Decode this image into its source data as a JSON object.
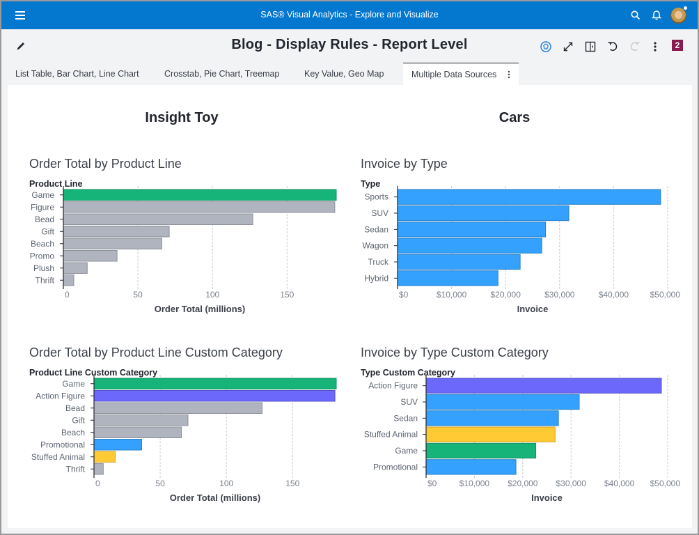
{
  "app": {
    "title": "SAS® Visual Analytics - Explore and Visualize",
    "icons": [
      "menu-icon",
      "search-icon",
      "bell-icon",
      "avatar"
    ]
  },
  "report": {
    "title": "Blog - Display Rules - Report Level",
    "badge_count": "2",
    "toolbar_icons": [
      "lightbulb-icon",
      "expand-icon",
      "pane-toggle-icon",
      "undo-icon",
      "redo-icon",
      "more-icon"
    ]
  },
  "tabs": [
    {
      "label": "List Table, Bar Chart, Line Chart",
      "active": false
    },
    {
      "label": "Crosstab, Pie Chart, Treemap",
      "active": false
    },
    {
      "label": "Key Value, Geo Map",
      "active": false
    },
    {
      "label": "Multiple Data Sources",
      "active": true
    }
  ],
  "sections": {
    "left": "Insight Toy",
    "right": "Cars"
  },
  "colors": {
    "app_bar": "#0478cf",
    "green": "#17b47a",
    "gray": "#afb4bf",
    "purple": "#6b68fb",
    "blue": "#33a1fd",
    "yellow": "#ffca33",
    "badge": "#8a1b50"
  },
  "chart_data": [
    {
      "id": "order-total-by-product-line",
      "type": "bar",
      "orientation": "horizontal",
      "title": "Order Total by Product Line",
      "category_title": "Product Line",
      "xlabel": "Order Total (millions)",
      "categories": [
        "Game",
        "Figure",
        "Bead",
        "Gift",
        "Beach",
        "Promo",
        "Plush",
        "Thrift"
      ],
      "values": [
        183,
        182,
        127,
        71,
        66,
        36,
        16,
        7
      ],
      "bar_colors": [
        "#17b47a",
        "#afb4bf",
        "#afb4bf",
        "#afb4bf",
        "#afb4bf",
        "#afb4bf",
        "#afb4bf",
        "#afb4bf"
      ],
      "xlim": [
        0,
        183
      ],
      "ticks": [
        0,
        50,
        100,
        150
      ],
      "tick_labels": [
        "0",
        "50",
        "100",
        "150"
      ],
      "grid": true
    },
    {
      "id": "invoice-by-type",
      "type": "bar",
      "orientation": "horizontal",
      "title": "Invoice by Type",
      "category_title": "Type",
      "xlabel": "Invoice",
      "categories": [
        "Sports",
        "SUV",
        "Sedan",
        "Wagon",
        "Truck",
        "Hybrid"
      ],
      "values": [
        48700,
        31700,
        27400,
        26700,
        22700,
        18600
      ],
      "bar_colors": [
        "#33a1fd",
        "#33a1fd",
        "#33a1fd",
        "#33a1fd",
        "#33a1fd",
        "#33a1fd"
      ],
      "xlim": [
        0,
        50000
      ],
      "ticks": [
        0,
        10000,
        20000,
        30000,
        40000,
        50000
      ],
      "tick_labels": [
        "$0",
        "$10,000",
        "$20,000",
        "$30,000",
        "$40,000",
        "$50,000"
      ],
      "grid": true
    },
    {
      "id": "order-total-by-product-line-custom-category",
      "type": "bar",
      "orientation": "horizontal",
      "title": "Order Total by Product Line Custom Category",
      "category_title": "Product Line Custom Category",
      "xlabel": "Order Total (millions)",
      "categories": [
        "Game",
        "Action Figure",
        "Bead",
        "Gift",
        "Beach",
        "Promotional",
        "Stuffed Animal",
        "Thrift"
      ],
      "values": [
        183,
        182,
        127,
        71,
        66,
        36,
        16,
        7
      ],
      "bar_colors": [
        "#17b47a",
        "#6b68fb",
        "#afb4bf",
        "#afb4bf",
        "#afb4bf",
        "#33a1fd",
        "#ffca33",
        "#afb4bf"
      ],
      "xlim": [
        0,
        183
      ],
      "ticks": [
        0,
        50,
        100,
        150
      ],
      "tick_labels": [
        "0",
        "50",
        "100",
        "150"
      ],
      "grid": true
    },
    {
      "id": "invoice-by-type-custom-category",
      "type": "bar",
      "orientation": "horizontal",
      "title": "Invoice by Type Custom Category",
      "category_title": "Type Custom Category",
      "xlabel": "Invoice",
      "categories": [
        "Action Figure",
        "SUV",
        "Sedan",
        "Stuffed Animal",
        "Game",
        "Promotional"
      ],
      "values": [
        48700,
        31700,
        27400,
        26700,
        22700,
        18600
      ],
      "bar_colors": [
        "#6b68fb",
        "#33a1fd",
        "#33a1fd",
        "#ffca33",
        "#17b47a",
        "#33a1fd"
      ],
      "xlim": [
        0,
        50000
      ],
      "ticks": [
        0,
        10000,
        20000,
        30000,
        40000,
        50000
      ],
      "tick_labels": [
        "$0",
        "$10,000",
        "$20,000",
        "$30,000",
        "$40,000",
        "$50,000"
      ],
      "grid": true
    }
  ]
}
